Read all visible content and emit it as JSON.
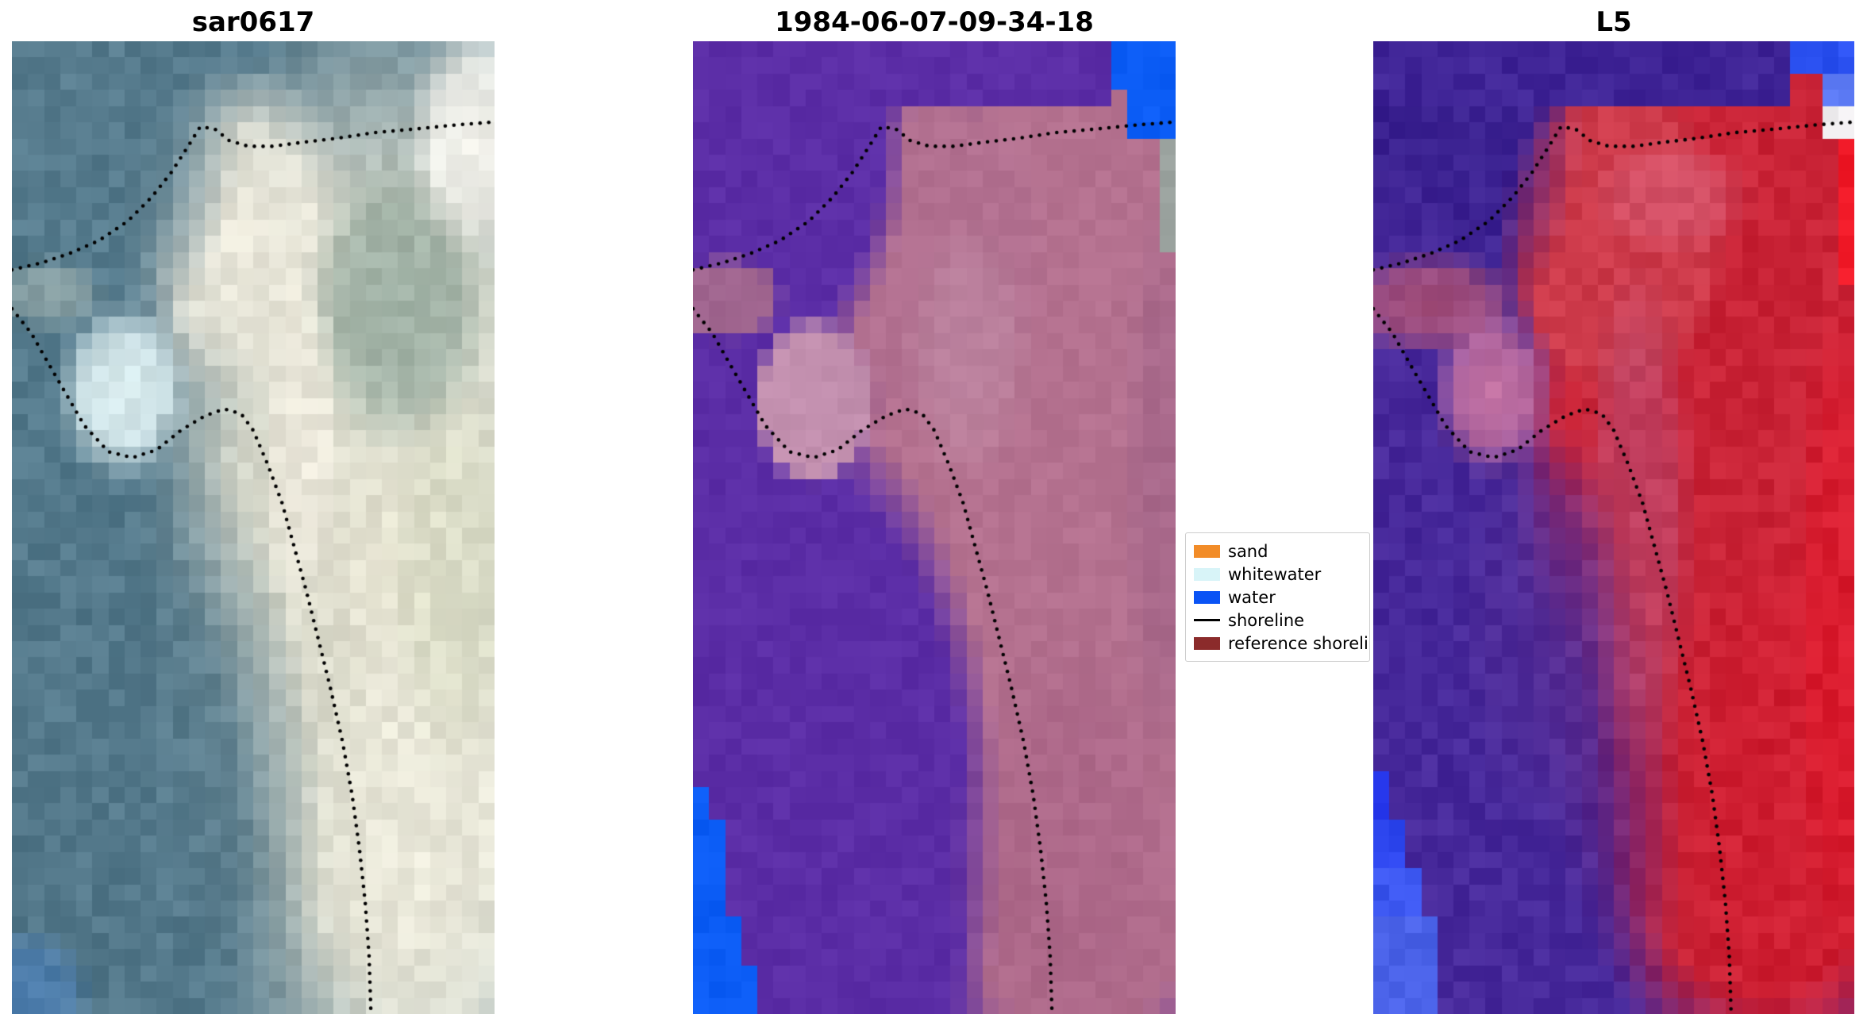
{
  "chart_data": {
    "type": "heatmap",
    "title": "",
    "description": "Three co-registered coastal satellite image panels with detected shoreline (black dotted line) overlaid",
    "panels": [
      {
        "title": "sar0617",
        "render": {
          "base": "#567b8d",
          "noise": 12,
          "blobs": [
            {
              "x": 0.78,
              "y": 0.55,
              "rx": 0.55,
              "ry": 0.62,
              "c": "#e7e4d2"
            },
            {
              "x": 0.47,
              "y": 0.2,
              "rx": 0.26,
              "ry": 0.18,
              "c": "#ebe8da"
            },
            {
              "x": 0.8,
              "y": 0.27,
              "rx": 0.2,
              "ry": 0.16,
              "c": "#93a89c",
              "a": 0.85
            },
            {
              "x": 0.97,
              "y": 0.1,
              "rx": 0.16,
              "ry": 0.13,
              "c": "#f4f3ec"
            },
            {
              "x": 0.13,
              "y": 0.09,
              "rx": 0.34,
              "ry": 0.25,
              "c": "#567b8d"
            },
            {
              "x": 0.06,
              "y": 0.42,
              "rx": 0.31,
              "ry": 0.33,
              "c": "#547a8c"
            },
            {
              "x": 0.22,
              "y": 0.82,
              "rx": 0.42,
              "ry": 0.45,
              "c": "#53788a"
            },
            {
              "x": 0.08,
              "y": 0.26,
              "rx": 0.12,
              "ry": 0.04,
              "c": "#9fb0ad",
              "a": 0.7
            },
            {
              "x": 0.23,
              "y": 0.36,
              "rx": 0.14,
              "ry": 0.095,
              "c": "#dceef0"
            },
            {
              "x": 0.6,
              "y": 0.42,
              "rx": 0.09,
              "ry": 0.18,
              "c": "#eeeadd",
              "a": 0.9
            },
            {
              "x": 0.86,
              "y": 0.85,
              "rx": 0.26,
              "ry": 0.28,
              "c": "#eceadb",
              "a": 0.9
            },
            {
              "x": 0.92,
              "y": 0.55,
              "rx": 0.15,
              "ry": 0.2,
              "c": "#d9dcc4",
              "a": 0.7
            },
            {
              "x": 0.03,
              "y": 0.98,
              "rx": 0.14,
              "ry": 0.07,
              "c": "#4a7cb0",
              "a": 0.9
            }
          ],
          "rects": []
        }
      },
      {
        "title": "1984-06-07-09-34-18",
        "render": {
          "base": "#5b2da6",
          "noise": 6,
          "blobs": [
            {
              "x": 0.8,
              "y": 0.52,
              "rx": 0.52,
              "ry": 0.6,
              "c": "#b4718f",
              "h": 1
            },
            {
              "x": 0.5,
              "y": 0.22,
              "rx": 0.24,
              "ry": 0.18,
              "c": "#b27090",
              "h": 1
            },
            {
              "x": 0.12,
              "y": 0.1,
              "rx": 0.33,
              "ry": 0.26,
              "c": "#5b2da6",
              "h": 1
            },
            {
              "x": 0.05,
              "y": 0.44,
              "rx": 0.3,
              "ry": 0.33,
              "c": "#5b2da6",
              "h": 1
            },
            {
              "x": 0.22,
              "y": 0.82,
              "rx": 0.42,
              "ry": 0.45,
              "c": "#5b2da6",
              "h": 1
            },
            {
              "x": 0.07,
              "y": 0.265,
              "rx": 0.12,
              "ry": 0.045,
              "c": "#a86c8d",
              "a": 0.9,
              "h": 1
            },
            {
              "x": 0.25,
              "y": 0.37,
              "rx": 0.13,
              "ry": 0.09,
              "c": "#c28fae",
              "h": 1
            },
            {
              "x": 0.57,
              "y": 0.32,
              "rx": 0.14,
              "ry": 0.14,
              "c": "#c493ab",
              "a": 0.5
            },
            {
              "x": 0.78,
              "y": 0.85,
              "rx": 0.25,
              "ry": 0.25,
              "c": "#a86285",
              "a": 0.6
            },
            {
              "x": 0.97,
              "y": 0.45,
              "rx": 0.08,
              "ry": 0.3,
              "c": "#9f6287",
              "a": 0.6
            }
          ],
          "rects": [
            {
              "x": 0,
              "y": 0,
              "w": 0.87,
              "h": 0.07,
              "c": "#5b2da6"
            },
            {
              "x": 0.86,
              "y": 0,
              "w": 0.14,
              "h": 0.048,
              "c": "#0b5cf5"
            },
            {
              "x": 0.905,
              "y": 0.048,
              "w": 0.095,
              "h": 0.042,
              "c": "#0b5cf5"
            },
            {
              "x": 0.955,
              "y": 0.095,
              "w": 0.045,
              "h": 0.06,
              "c": "#9aa29e"
            },
            {
              "x": 0.975,
              "y": 0.155,
              "w": 0.025,
              "h": 0.065,
              "c": "#9aa29e"
            },
            {
              "x": 0,
              "y": 0.765,
              "w": 0.025,
              "h": 0.235,
              "c": "#0b5cf5"
            },
            {
              "x": 0,
              "y": 0.805,
              "w": 0.05,
              "h": 0.195,
              "c": "#0b5cf5"
            },
            {
              "x": 0,
              "y": 0.85,
              "w": 0.075,
              "h": 0.15,
              "c": "#0b5cf5"
            },
            {
              "x": 0,
              "y": 0.9,
              "w": 0.1,
              "h": 0.1,
              "c": "#0b5cf5"
            },
            {
              "x": 0,
              "y": 0.95,
              "w": 0.125,
              "h": 0.05,
              "c": "#0b5cf5"
            }
          ]
        }
      },
      {
        "title": "L5",
        "render": {
          "base": "#47289a",
          "noise": 10,
          "blobs": [
            {
              "x": 0.8,
              "y": 0.5,
              "rx": 0.52,
              "ry": 0.58,
              "c": "#c92336",
              "h": 1
            },
            {
              "x": 0.5,
              "y": 0.2,
              "rx": 0.24,
              "ry": 0.17,
              "c": "#cd3a4a",
              "h": 1
            },
            {
              "x": 0.1,
              "y": 0.09,
              "rx": 0.33,
              "ry": 0.25,
              "c": "#3a2190"
            },
            {
              "x": 0.05,
              "y": 0.44,
              "rx": 0.3,
              "ry": 0.33,
              "c": "#47289a"
            },
            {
              "x": 0.22,
              "y": 0.82,
              "rx": 0.42,
              "ry": 0.45,
              "c": "#46289a"
            },
            {
              "x": 0.12,
              "y": 0.27,
              "rx": 0.2,
              "ry": 0.055,
              "c": "#b05578",
              "a": 0.9
            },
            {
              "x": 0.25,
              "y": 0.36,
              "rx": 0.13,
              "ry": 0.09,
              "c": "#c06e9e"
            },
            {
              "x": 0.62,
              "y": 0.16,
              "rx": 0.18,
              "ry": 0.06,
              "c": "#d8607a",
              "a": 0.6
            },
            {
              "x": 0.55,
              "y": 0.5,
              "rx": 0.12,
              "ry": 0.28,
              "c": "#b8507a",
              "a": 0.6
            },
            {
              "x": 0.88,
              "y": 0.78,
              "rx": 0.28,
              "ry": 0.3,
              "c": "#d01d30",
              "a": 0.9
            },
            {
              "x": 0.97,
              "y": 0.6,
              "rx": 0.1,
              "ry": 0.35,
              "c": "#e01a2c",
              "a": 0.7
            },
            {
              "x": 0.35,
              "y": 0.6,
              "rx": 0.18,
              "ry": 0.22,
              "c": "#55309a",
              "a": 0.6
            }
          ],
          "rects": [
            {
              "x": 0,
              "y": 0,
              "w": 0.86,
              "h": 0.065,
              "c": "#3f2496"
            },
            {
              "x": 0.86,
              "y": 0,
              "w": 0.14,
              "h": 0.04,
              "c": "#2a50f0"
            },
            {
              "x": 0.93,
              "y": 0.04,
              "w": 0.07,
              "h": 0.03,
              "c": "#5a78f2"
            },
            {
              "x": 0.93,
              "y": 0.07,
              "w": 0.07,
              "h": 0.035,
              "c": "#f2f0f2"
            },
            {
              "x": 0.955,
              "y": 0.105,
              "w": 0.045,
              "h": 0.065,
              "c": "#ef1826"
            },
            {
              "x": 0.975,
              "y": 0.17,
              "w": 0.025,
              "h": 0.075,
              "c": "#ef1826"
            },
            {
              "x": 0,
              "y": 0.755,
              "w": 0.03,
              "h": 0.245,
              "c": "#2b3cf0"
            },
            {
              "x": 0,
              "y": 0.8,
              "w": 0.06,
              "h": 0.2,
              "c": "#2f48f0"
            },
            {
              "x": 0,
              "y": 0.85,
              "w": 0.09,
              "h": 0.15,
              "c": "#3a55ee"
            },
            {
              "x": 0,
              "y": 0.905,
              "w": 0.12,
              "h": 0.095,
              "c": "#4a62e8"
            }
          ]
        }
      }
    ],
    "legend": [
      {
        "label": "sand",
        "color": "#f28c28",
        "type": "patch"
      },
      {
        "label": "whitewater",
        "color": "#d8f4f8",
        "type": "patch"
      },
      {
        "label": "water",
        "color": "#0a53f5",
        "type": "patch"
      },
      {
        "label": "shoreline",
        "color": "#000000",
        "type": "line"
      },
      {
        "label": "reference shoreline",
        "color": "#8b2b2b",
        "type": "patch"
      }
    ],
    "shorelines": {
      "upper": [
        [
          0.0,
          0.235
        ],
        [
          0.06,
          0.228
        ],
        [
          0.12,
          0.218
        ],
        [
          0.18,
          0.205
        ],
        [
          0.24,
          0.185
        ],
        [
          0.29,
          0.16
        ],
        [
          0.33,
          0.135
        ],
        [
          0.365,
          0.108
        ],
        [
          0.39,
          0.088
        ],
        [
          0.42,
          0.09
        ],
        [
          0.45,
          0.102
        ],
        [
          0.49,
          0.108
        ],
        [
          0.54,
          0.108
        ],
        [
          0.6,
          0.104
        ],
        [
          0.67,
          0.1
        ],
        [
          0.75,
          0.094
        ],
        [
          0.84,
          0.09
        ],
        [
          0.92,
          0.086
        ],
        [
          1.0,
          0.083
        ]
      ],
      "lower": [
        [
          0.0,
          0.275
        ],
        [
          0.04,
          0.3
        ],
        [
          0.08,
          0.335
        ],
        [
          0.115,
          0.365
        ],
        [
          0.15,
          0.395
        ],
        [
          0.2,
          0.422
        ],
        [
          0.25,
          0.428
        ],
        [
          0.3,
          0.42
        ],
        [
          0.35,
          0.4
        ],
        [
          0.4,
          0.385
        ],
        [
          0.44,
          0.378
        ],
        [
          0.475,
          0.383
        ],
        [
          0.5,
          0.4
        ],
        [
          0.53,
          0.435
        ],
        [
          0.56,
          0.475
        ],
        [
          0.585,
          0.52
        ],
        [
          0.61,
          0.565
        ],
        [
          0.635,
          0.615
        ],
        [
          0.66,
          0.665
        ],
        [
          0.685,
          0.72
        ],
        [
          0.705,
          0.775
        ],
        [
          0.72,
          0.83
        ],
        [
          0.732,
          0.885
        ],
        [
          0.74,
          0.94
        ],
        [
          0.744,
          1.0
        ]
      ]
    }
  }
}
